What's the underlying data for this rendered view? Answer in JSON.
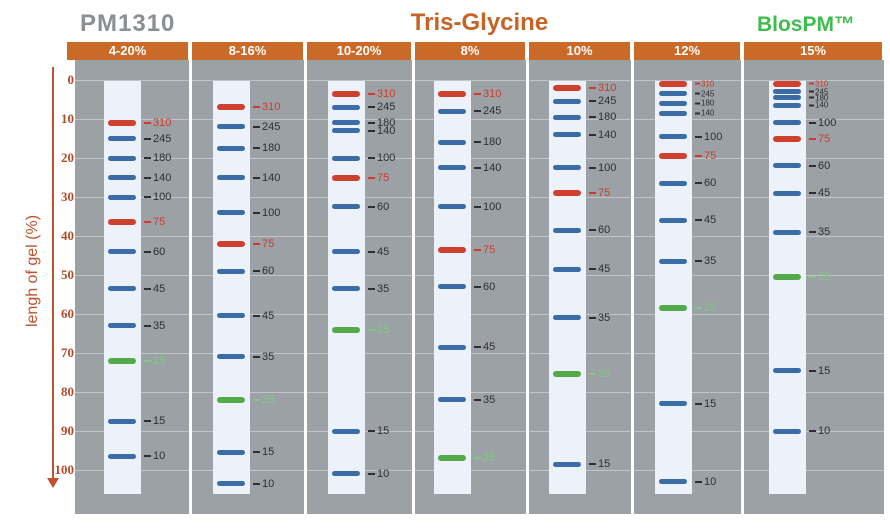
{
  "header": {
    "product": "PM1310",
    "title": "Tris-Glycine",
    "brand": "BlosPM™"
  },
  "axis": {
    "label": "lengh of gel (%)",
    "ticks": [
      "0",
      "10",
      "20",
      "30",
      "40",
      "50",
      "60",
      "70",
      "80",
      "90",
      "100"
    ]
  },
  "colors": {
    "header_orange": "#c96a28",
    "title_gray": "#8b8f94",
    "title_orange": "#c66425",
    "brand_green": "#3dbd4e",
    "axis_orange": "#c0532c",
    "tick_red": "#b44a2a",
    "plot_bg": "#9ca1a6",
    "lane_bg": "#edf1fa",
    "band_blue": "#3a6ca8",
    "band_red": "#d0402e",
    "band_green": "#54a94b",
    "label_dark": "#2e2e2e",
    "label_red": "#cf3a2a",
    "label_green": "#7ecb80"
  },
  "chart_data": {
    "type": "gel-migration-ladder",
    "title": "Tris-Glycine",
    "subtitle": "PM1310",
    "ylabel": "lengh of gel (%)",
    "ylim": [
      0,
      100
    ],
    "y_direction": "down",
    "grid": true,
    "marker_sizes_kda": [
      310,
      245,
      180,
      140,
      100,
      75,
      60,
      45,
      35,
      25,
      15,
      10
    ],
    "band_color_rule": {
      "310": "red",
      "75": "red",
      "25": "green",
      "default": "blue"
    },
    "lanes": [
      {
        "gel": "4-20%",
        "bands": [
          {
            "kda": 310,
            "color": "red",
            "pct": 11
          },
          {
            "kda": 245,
            "color": "blue",
            "pct": 15
          },
          {
            "kda": 180,
            "color": "blue",
            "pct": 20
          },
          {
            "kda": 140,
            "color": "blue",
            "pct": 25
          },
          {
            "kda": 100,
            "color": "blue",
            "pct": 30
          },
          {
            "kda": 75,
            "color": "red",
            "pct": 36.5
          },
          {
            "kda": 60,
            "color": "blue",
            "pct": 44
          },
          {
            "kda": 45,
            "color": "blue",
            "pct": 53.5
          },
          {
            "kda": 35,
            "color": "blue",
            "pct": 63
          },
          {
            "kda": 25,
            "color": "green",
            "pct": 72
          },
          {
            "kda": 15,
            "color": "blue",
            "pct": 87.5
          },
          {
            "kda": 10,
            "color": "blue",
            "pct": 96.5
          }
        ]
      },
      {
        "gel": "8-16%",
        "bands": [
          {
            "kda": 310,
            "color": "red",
            "pct": 7
          },
          {
            "kda": 245,
            "color": "blue",
            "pct": 12
          },
          {
            "kda": 180,
            "color": "blue",
            "pct": 17.5
          },
          {
            "kda": 140,
            "color": "blue",
            "pct": 25
          },
          {
            "kda": 100,
            "color": "blue",
            "pct": 34
          },
          {
            "kda": 75,
            "color": "red",
            "pct": 42
          },
          {
            "kda": 60,
            "color": "blue",
            "pct": 49
          },
          {
            "kda": 45,
            "color": "blue",
            "pct": 60.5
          },
          {
            "kda": 35,
            "color": "blue",
            "pct": 71
          },
          {
            "kda": 25,
            "color": "green",
            "pct": 82
          },
          {
            "kda": 15,
            "color": "blue",
            "pct": 95.5
          },
          {
            "kda": 10,
            "color": "blue",
            "pct": 103.5
          }
        ]
      },
      {
        "gel": "10-20%",
        "bands": [
          {
            "kda": 310,
            "color": "red",
            "pct": 3.5
          },
          {
            "kda": 245,
            "color": "blue",
            "pct": 7
          },
          {
            "kda": 180,
            "color": "blue",
            "pct": 11
          },
          {
            "kda": 140,
            "color": "blue",
            "pct": 13
          },
          {
            "kda": 100,
            "color": "blue",
            "pct": 20
          },
          {
            "kda": 75,
            "color": "red",
            "pct": 25
          },
          {
            "kda": 60,
            "color": "blue",
            "pct": 32.5
          },
          {
            "kda": 45,
            "color": "blue",
            "pct": 44
          },
          {
            "kda": 35,
            "color": "blue",
            "pct": 53.5
          },
          {
            "kda": 25,
            "color": "green",
            "pct": 64
          },
          {
            "kda": 15,
            "color": "blue",
            "pct": 90
          },
          {
            "kda": 10,
            "color": "blue",
            "pct": 101
          }
        ]
      },
      {
        "gel": "8%",
        "bands": [
          {
            "kda": 310,
            "color": "red",
            "pct": 3.5
          },
          {
            "kda": 245,
            "color": "blue",
            "pct": 8
          },
          {
            "kda": 180,
            "color": "blue",
            "pct": 16
          },
          {
            "kda": 140,
            "color": "blue",
            "pct": 22.5
          },
          {
            "kda": 100,
            "color": "blue",
            "pct": 32.5
          },
          {
            "kda": 75,
            "color": "red",
            "pct": 43.5
          },
          {
            "kda": 60,
            "color": "blue",
            "pct": 53
          },
          {
            "kda": 45,
            "color": "blue",
            "pct": 68.5
          },
          {
            "kda": 35,
            "color": "blue",
            "pct": 82
          },
          {
            "kda": 25,
            "color": "green",
            "pct": 97
          }
        ]
      },
      {
        "gel": "10%",
        "bands": [
          {
            "kda": 310,
            "color": "red",
            "pct": 2
          },
          {
            "kda": 245,
            "color": "blue",
            "pct": 5.5
          },
          {
            "kda": 180,
            "color": "blue",
            "pct": 9.5
          },
          {
            "kda": 140,
            "color": "blue",
            "pct": 14
          },
          {
            "kda": 100,
            "color": "blue",
            "pct": 22.5
          },
          {
            "kda": 75,
            "color": "red",
            "pct": 29
          },
          {
            "kda": 60,
            "color": "blue",
            "pct": 38.5
          },
          {
            "kda": 45,
            "color": "blue",
            "pct": 48.5
          },
          {
            "kda": 35,
            "color": "blue",
            "pct": 61
          },
          {
            "kda": 25,
            "color": "green",
            "pct": 75.5
          },
          {
            "kda": 15,
            "color": "blue",
            "pct": 98.5
          }
        ]
      },
      {
        "gel": "12%",
        "bands": [
          {
            "kda": 310,
            "color": "red",
            "pct": 1,
            "small": true
          },
          {
            "kda": 245,
            "color": "blue",
            "pct": 3.5,
            "small": true
          },
          {
            "kda": 180,
            "color": "blue",
            "pct": 6,
            "small": true
          },
          {
            "kda": 140,
            "color": "blue",
            "pct": 8.5,
            "small": true
          },
          {
            "kda": 100,
            "color": "blue",
            "pct": 14.5
          },
          {
            "kda": 75,
            "color": "red",
            "pct": 19.5
          },
          {
            "kda": 60,
            "color": "blue",
            "pct": 26.5
          },
          {
            "kda": 45,
            "color": "blue",
            "pct": 36
          },
          {
            "kda": 35,
            "color": "blue",
            "pct": 46.5
          },
          {
            "kda": 25,
            "color": "green",
            "pct": 58.5
          },
          {
            "kda": 15,
            "color": "blue",
            "pct": 83
          },
          {
            "kda": 10,
            "color": "blue",
            "pct": 103
          }
        ]
      },
      {
        "gel": "15%",
        "bands": [
          {
            "kda": 310,
            "color": "red",
            "pct": 1,
            "small": true
          },
          {
            "kda": 245,
            "color": "blue",
            "pct": 3,
            "small": true
          },
          {
            "kda": 180,
            "color": "blue",
            "pct": 4.5,
            "small": true
          },
          {
            "kda": 140,
            "color": "blue",
            "pct": 6.5,
            "small": true
          },
          {
            "kda": 100,
            "color": "blue",
            "pct": 11
          },
          {
            "kda": 75,
            "color": "red",
            "pct": 15
          },
          {
            "kda": 60,
            "color": "blue",
            "pct": 22
          },
          {
            "kda": 45,
            "color": "blue",
            "pct": 29
          },
          {
            "kda": 35,
            "color": "blue",
            "pct": 39
          },
          {
            "kda": 25,
            "color": "green",
            "pct": 50.5
          },
          {
            "kda": 15,
            "color": "blue",
            "pct": 74.5
          },
          {
            "kda": 10,
            "color": "blue",
            "pct": 90
          }
        ]
      }
    ]
  }
}
